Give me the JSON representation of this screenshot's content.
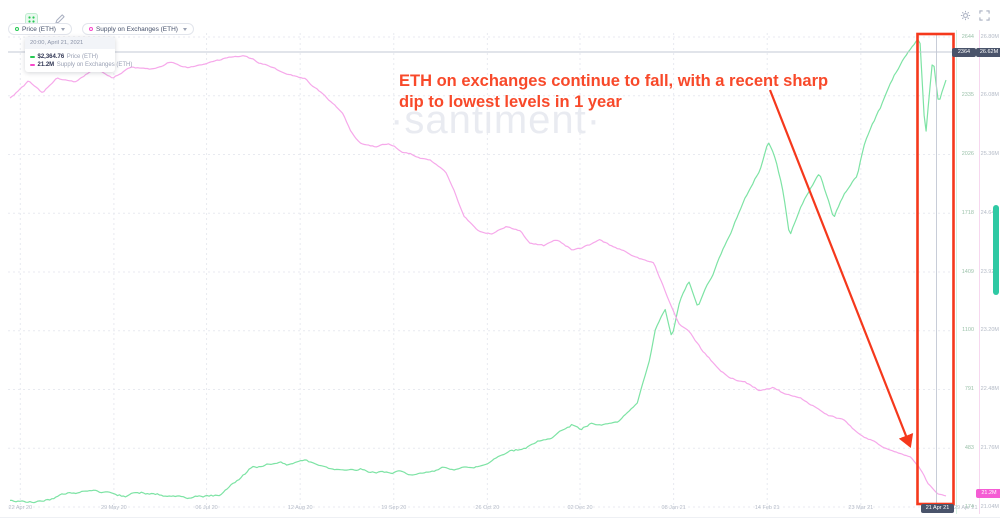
{
  "watermark": "·santiment·",
  "icons": {
    "screener": "green-grid-dots",
    "draw": "pencil",
    "settings": "gear",
    "fullscreen": "corner-brackets",
    "chevron_down": "▾"
  },
  "toolbar": {
    "metric_buttons": [
      {
        "label": "Price (ETH)",
        "color": "#26c953"
      },
      {
        "label": "Supply on Exchanges (ETH)",
        "color": "#f747c9"
      }
    ]
  },
  "tooltip": {
    "timestamp": "20:00, April 21, 2021",
    "rows": [
      {
        "value": "$2,364.76",
        "label": "Price (ETH)",
        "color": "#26c953"
      },
      {
        "value": "21.2M",
        "label": "Supply on Exchanges (ETH)",
        "color": "#f747c9"
      }
    ]
  },
  "annotation": {
    "line1": "ETH on exchanges continue to fall, with a recent sharp",
    "line2": "dip to lowest levels in 1 year",
    "color": "#f8492a"
  },
  "badges": {
    "price_crosshair": "2364",
    "supply_crosshair": "26.62M",
    "supply_last": "21.2M",
    "date_crosshair": "21 Apr 21",
    "date_last": "29 Apr 21"
  },
  "chart_data": {
    "type": "line",
    "title": "",
    "legend_position": "top-left",
    "grid": true,
    "x_axis": {
      "ticks": [
        {
          "f": 0.011,
          "label": "22 Apr 20"
        },
        {
          "f": 0.111,
          "label": "29 May 20"
        },
        {
          "f": 0.21,
          "label": "06 Jul 20"
        },
        {
          "f": 0.31,
          "label": "12 Aug 20"
        },
        {
          "f": 0.41,
          "label": "19 Sep 20"
        },
        {
          "f": 0.51,
          "label": "26 Oct 20"
        },
        {
          "f": 0.609,
          "label": "02 Dec 20"
        },
        {
          "f": 0.709,
          "label": "08 Jan 21"
        },
        {
          "f": 0.809,
          "label": "14 Feb 21"
        },
        {
          "f": 0.909,
          "label": "23 Mar 21"
        }
      ]
    },
    "y_axis_price": {
      "side": "right",
      "min": 174,
      "max": 2644,
      "axis_line_color": "#d7f1e1",
      "ticks": [
        "2644",
        "2335",
        "2026",
        "1718",
        "1409",
        "1100",
        "791",
        "483",
        "174"
      ]
    },
    "y_axis_supply": {
      "side": "right",
      "min": 21.04,
      "max": 26.8,
      "unit": "M",
      "axis_line_color": "#f6d7ef",
      "ticks": [
        "26.80M",
        "26.08M",
        "25.36M",
        "24.64M",
        "23.92M",
        "23.20M",
        "22.48M",
        "21.76M",
        "21.04M"
      ]
    },
    "series": [
      {
        "name": "Price (ETH)",
        "axis": "price",
        "color": "#7de3a4",
        "points": [
          [
            0,
            210
          ],
          [
            0.02,
            205
          ],
          [
            0.04,
            215
          ],
          [
            0.06,
            230
          ],
          [
            0.09,
            245
          ],
          [
            0.1,
            238
          ],
          [
            0.12,
            225
          ],
          [
            0.14,
            235
          ],
          [
            0.16,
            230
          ],
          [
            0.18,
            228
          ],
          [
            0.2,
            238
          ],
          [
            0.225,
            250
          ],
          [
            0.245,
            330
          ],
          [
            0.26,
            395
          ],
          [
            0.28,
            408
          ],
          [
            0.3,
            398
          ],
          [
            0.315,
            415
          ],
          [
            0.33,
            390
          ],
          [
            0.345,
            355
          ],
          [
            0.36,
            350
          ],
          [
            0.375,
            365
          ],
          [
            0.39,
            355
          ],
          [
            0.41,
            368
          ],
          [
            0.43,
            360
          ],
          [
            0.45,
            378
          ],
          [
            0.47,
            388
          ],
          [
            0.49,
            380
          ],
          [
            0.51,
            405
          ],
          [
            0.53,
            450
          ],
          [
            0.55,
            465
          ],
          [
            0.57,
            520
          ],
          [
            0.59,
            560
          ],
          [
            0.6,
            595
          ],
          [
            0.61,
            565
          ],
          [
            0.62,
            605
          ],
          [
            0.635,
            615
          ],
          [
            0.65,
            640
          ],
          [
            0.66,
            690
          ],
          [
            0.67,
            735
          ],
          [
            0.683,
            960
          ],
          [
            0.69,
            1130
          ],
          [
            0.7,
            1230
          ],
          [
            0.707,
            1080
          ],
          [
            0.715,
            1260
          ],
          [
            0.725,
            1380
          ],
          [
            0.735,
            1240
          ],
          [
            0.75,
            1390
          ],
          [
            0.765,
            1560
          ],
          [
            0.775,
            1680
          ],
          [
            0.785,
            1790
          ],
          [
            0.8,
            1930
          ],
          [
            0.81,
            2080
          ],
          [
            0.818,
            1990
          ],
          [
            0.825,
            1850
          ],
          [
            0.833,
            1590
          ],
          [
            0.84,
            1680
          ],
          [
            0.85,
            1790
          ],
          [
            0.858,
            1870
          ],
          [
            0.865,
            1920
          ],
          [
            0.872,
            1810
          ],
          [
            0.88,
            1680
          ],
          [
            0.888,
            1780
          ],
          [
            0.895,
            1840
          ],
          [
            0.905,
            1900
          ],
          [
            0.912,
            2060
          ],
          [
            0.92,
            2160
          ],
          [
            0.93,
            2260
          ],
          [
            0.94,
            2380
          ],
          [
            0.95,
            2480
          ],
          [
            0.96,
            2560
          ],
          [
            0.972,
            2625
          ],
          [
            0.978,
            2090
          ],
          [
            0.982,
            2320
          ],
          [
            0.986,
            2525
          ],
          [
            0.992,
            2290
          ],
          [
            1,
            2410
          ]
        ]
      },
      {
        "name": "Supply on Exchanges (ETH)",
        "axis": "supply",
        "color": "#f6a8ea",
        "points": [
          [
            0,
            26.05
          ],
          [
            0.02,
            26.25
          ],
          [
            0.035,
            26.1
          ],
          [
            0.05,
            26.3
          ],
          [
            0.07,
            26.25
          ],
          [
            0.09,
            26.4
          ],
          [
            0.11,
            26.3
          ],
          [
            0.13,
            26.45
          ],
          [
            0.15,
            26.4
          ],
          [
            0.17,
            26.5
          ],
          [
            0.19,
            26.45
          ],
          [
            0.21,
            26.5
          ],
          [
            0.23,
            26.55
          ],
          [
            0.25,
            26.6
          ],
          [
            0.265,
            26.5
          ],
          [
            0.28,
            26.45
          ],
          [
            0.3,
            26.35
          ],
          [
            0.315,
            26.3
          ],
          [
            0.33,
            26.15
          ],
          [
            0.345,
            26.0
          ],
          [
            0.355,
            25.9
          ],
          [
            0.365,
            25.65
          ],
          [
            0.375,
            25.5
          ],
          [
            0.39,
            25.45
          ],
          [
            0.405,
            25.5
          ],
          [
            0.42,
            25.4
          ],
          [
            0.435,
            25.35
          ],
          [
            0.45,
            25.3
          ],
          [
            0.465,
            25.15
          ],
          [
            0.475,
            24.9
          ],
          [
            0.485,
            24.6
          ],
          [
            0.5,
            24.45
          ],
          [
            0.515,
            24.4
          ],
          [
            0.53,
            24.5
          ],
          [
            0.545,
            24.45
          ],
          [
            0.555,
            24.3
          ],
          [
            0.57,
            24.25
          ],
          [
            0.585,
            24.3
          ],
          [
            0.6,
            24.2
          ],
          [
            0.615,
            24.25
          ],
          [
            0.63,
            24.3
          ],
          [
            0.645,
            24.2
          ],
          [
            0.66,
            24.15
          ],
          [
            0.675,
            24.1
          ],
          [
            0.688,
            24.05
          ],
          [
            0.695,
            23.85
          ],
          [
            0.705,
            23.55
          ],
          [
            0.715,
            23.3
          ],
          [
            0.725,
            23.2
          ],
          [
            0.74,
            22.95
          ],
          [
            0.755,
            22.75
          ],
          [
            0.77,
            22.6
          ],
          [
            0.785,
            22.55
          ],
          [
            0.8,
            22.45
          ],
          [
            0.815,
            22.5
          ],
          [
            0.83,
            22.4
          ],
          [
            0.845,
            22.35
          ],
          [
            0.86,
            22.25
          ],
          [
            0.875,
            22.15
          ],
          [
            0.89,
            22.1
          ],
          [
            0.9,
            22.0
          ],
          [
            0.912,
            21.9
          ],
          [
            0.925,
            21.85
          ],
          [
            0.94,
            21.75
          ],
          [
            0.953,
            21.7
          ],
          [
            0.963,
            21.65
          ],
          [
            0.97,
            21.55
          ],
          [
            0.975,
            21.45
          ],
          [
            0.98,
            21.33
          ],
          [
            0.986,
            21.25
          ],
          [
            0.992,
            21.2
          ],
          [
            1,
            21.17
          ]
        ]
      }
    ],
    "annotations": {
      "highlight_box": {
        "color": "#f5381c"
      },
      "arrow": {
        "color": "#f5381c"
      }
    }
  }
}
